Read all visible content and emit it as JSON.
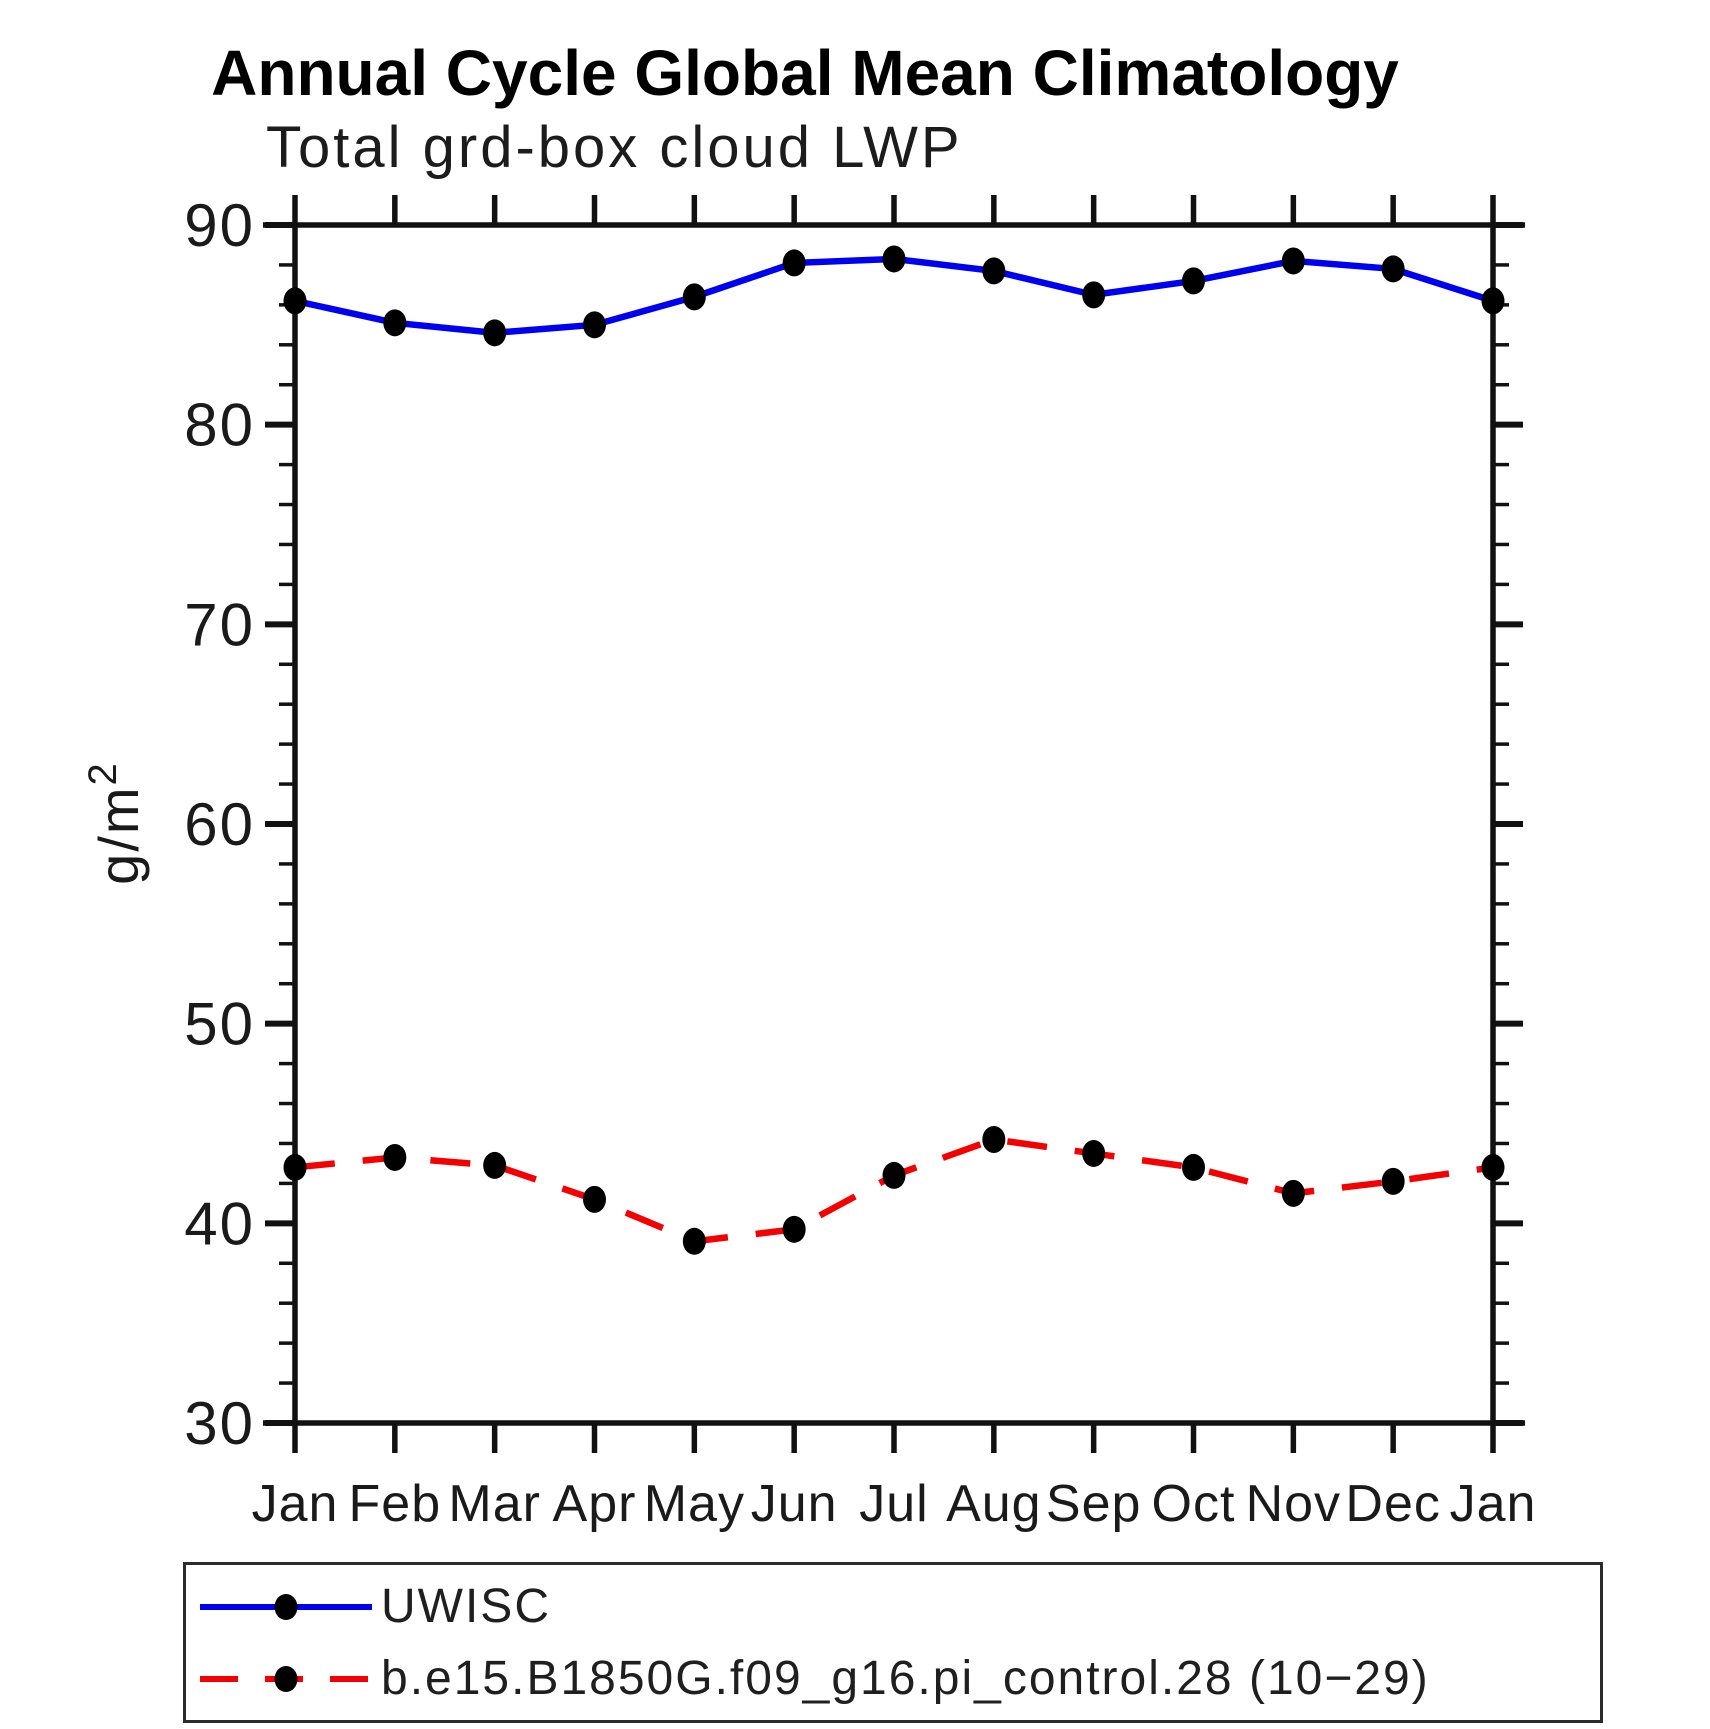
{
  "header": {
    "title": "Annual Cycle Global Mean Climatology",
    "subtitle": "Total grd-box cloud LWP"
  },
  "chart_data": {
    "type": "line",
    "title": "Annual Cycle Global Mean Climatology",
    "subtitle": "Total grd-box cloud LWP",
    "ylabel_base": "g/m",
    "ylabel_exp": "2",
    "categories": [
      "Jan",
      "Feb",
      "Mar",
      "Apr",
      "May",
      "Jun",
      "Jul",
      "Aug",
      "Sep",
      "Oct",
      "Nov",
      "Dec",
      "Jan"
    ],
    "ylim": [
      30,
      90
    ],
    "yticks_major": [
      30,
      40,
      50,
      60,
      70,
      80,
      90
    ],
    "minor_step": 2,
    "grid": false,
    "legend_position": "bottom",
    "marker_color": "#000000",
    "series": [
      {
        "name": "UWISC",
        "color": "#0000f0",
        "dash": "solid",
        "values": [
          86.2,
          85.1,
          84.6,
          85.0,
          86.4,
          88.1,
          88.3,
          87.7,
          86.5,
          87.2,
          88.2,
          87.8,
          86.2
        ]
      },
      {
        "name": "b.e15.B1850G.f09_g16.pi_control.28 (10−29)",
        "color": "#f40000",
        "dash": "dashed",
        "values": [
          42.8,
          43.3,
          42.9,
          41.2,
          39.1,
          39.7,
          42.4,
          44.2,
          43.5,
          42.8,
          41.5,
          42.1,
          42.8
        ]
      }
    ]
  }
}
